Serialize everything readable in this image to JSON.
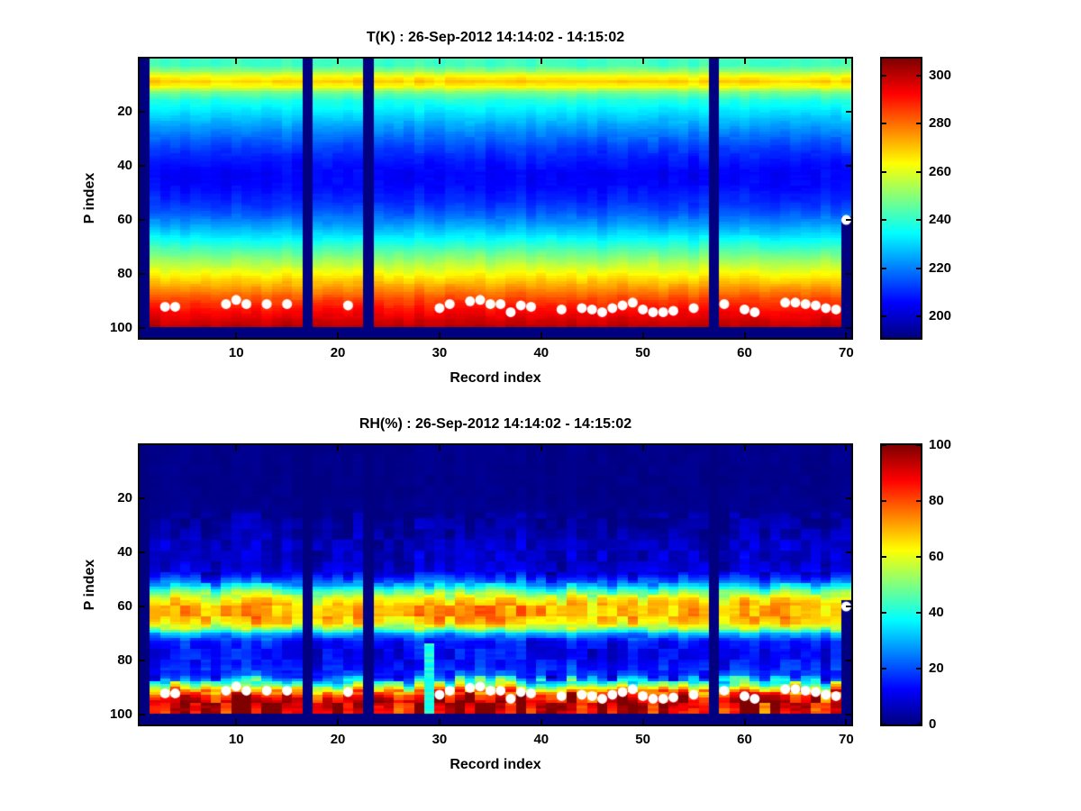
{
  "figure": {
    "background": "#ffffff",
    "marker_color": "#ffffff",
    "missing_data_color_note": "minimum of jet colormap (dark navy)"
  },
  "chart_data": [
    {
      "id": "temperature",
      "type": "heatmap",
      "title": "T(K) : 26-Sep-2012 14:14:02 - 14:15:02",
      "xlabel": "Record index",
      "ylabel": "P index",
      "colormap": "jet",
      "x_range": [
        0.5,
        70.5
      ],
      "y_range": [
        0.5,
        103.5
      ],
      "y_axis_reversed": true,
      "n_records": 70,
      "n_levels": 99,
      "x_ticks": [
        10,
        20,
        30,
        40,
        50,
        60,
        70
      ],
      "y_ticks": [
        20,
        40,
        60,
        80,
        100
      ],
      "color_range": [
        191,
        307
      ],
      "colorbar_ticks": [
        200,
        220,
        240,
        260,
        280,
        300
      ],
      "missing_records": [
        1,
        17,
        23,
        57
      ],
      "partial_records": [
        {
          "record": 70,
          "from_p": 59
        }
      ],
      "anomalies": [],
      "profile": {
        "p": [
          0.5,
          3,
          5,
          7,
          9,
          11,
          13,
          16,
          20,
          24,
          28,
          33,
          38,
          43,
          48,
          53,
          57,
          61,
          65,
          69,
          73,
          77,
          81,
          85,
          89,
          93,
          97,
          99
        ],
        "value": [
          241,
          242,
          250,
          262,
          269,
          262,
          248,
          238,
          232,
          226,
          220,
          213,
          208,
          205,
          206,
          210,
          215,
          222,
          230,
          239,
          248,
          257,
          266,
          275,
          284,
          291,
          297,
          300
        ]
      },
      "noise": {
        "seed": 42,
        "column_amp": 1.5,
        "band_amp": 1.2,
        "cell_amp": 0.8
      },
      "markers": {
        "shape": "circle",
        "color": "#ffffff",
        "radius": 5.5,
        "points": [
          [
            3,
            92
          ],
          [
            4,
            92
          ],
          [
            9,
            91
          ],
          [
            10,
            89.5
          ],
          [
            11,
            91
          ],
          [
            13,
            91
          ],
          [
            15,
            91
          ],
          [
            21,
            91.5
          ],
          [
            30,
            92.5
          ],
          [
            31,
            91
          ],
          [
            33,
            90
          ],
          [
            34,
            89.5
          ],
          [
            35,
            91
          ],
          [
            36,
            91
          ],
          [
            37,
            94
          ],
          [
            38,
            91.5
          ],
          [
            39,
            92
          ],
          [
            42,
            93
          ],
          [
            44,
            92.5
          ],
          [
            45,
            93
          ],
          [
            46,
            94
          ],
          [
            47,
            92.5
          ],
          [
            48,
            91.5
          ],
          [
            49,
            90.5
          ],
          [
            50,
            93
          ],
          [
            51,
            94
          ],
          [
            52,
            94
          ],
          [
            53,
            93.5
          ],
          [
            55,
            92.5
          ],
          [
            58,
            91
          ],
          [
            60,
            93
          ],
          [
            61,
            94
          ],
          [
            64,
            90.5
          ],
          [
            65,
            90.5
          ],
          [
            66,
            91
          ],
          [
            67,
            91.5
          ],
          [
            68,
            92.5
          ],
          [
            69,
            93
          ],
          [
            70,
            60
          ]
        ]
      }
    },
    {
      "id": "relative-humidity",
      "type": "heatmap",
      "title": "RH(%) : 26-Sep-2012 14:14:02 - 14:15:02",
      "xlabel": "Record index",
      "ylabel": "P index",
      "colormap": "jet",
      "x_range": [
        0.5,
        70.5
      ],
      "y_range": [
        0.5,
        103.5
      ],
      "y_axis_reversed": true,
      "n_records": 70,
      "n_levels": 99,
      "x_ticks": [
        10,
        20,
        30,
        40,
        50,
        60,
        70
      ],
      "y_ticks": [
        20,
        40,
        60,
        80,
        100
      ],
      "color_range": [
        0,
        100
      ],
      "colorbar_ticks": [
        0,
        20,
        40,
        60,
        80,
        100
      ],
      "missing_records": [
        1,
        17,
        23,
        57
      ],
      "partial_records": [
        {
          "record": 70,
          "from_p": 58
        }
      ],
      "anomalies": [
        {
          "record": 29,
          "from_p": 74,
          "value": 40
        }
      ],
      "profile": {
        "p": [
          0.5,
          20,
          28,
          32,
          36,
          40,
          44,
          48,
          51,
          54,
          57,
          60,
          63,
          66,
          68,
          70,
          73,
          77,
          81,
          85,
          87,
          89,
          91,
          93,
          95,
          97,
          99
        ],
        "value": [
          1,
          1,
          2,
          4,
          6,
          7,
          7,
          10,
          22,
          45,
          62,
          70,
          71,
          66,
          52,
          28,
          14,
          12,
          13,
          18,
          30,
          50,
          72,
          88,
          95,
          92,
          90
        ]
      },
      "noise": {
        "seed": 77,
        "column_amp": 1.0,
        "band_amp": 1.0,
        "cell_amp": 0.5
      },
      "markers": {
        "shape": "circle",
        "color": "#ffffff",
        "radius": 5.5,
        "points": [
          [
            3,
            92
          ],
          [
            4,
            92
          ],
          [
            9,
            91
          ],
          [
            10,
            89.5
          ],
          [
            11,
            91
          ],
          [
            13,
            91
          ],
          [
            15,
            91
          ],
          [
            21,
            91.5
          ],
          [
            30,
            92.5
          ],
          [
            31,
            91
          ],
          [
            33,
            90
          ],
          [
            34,
            89.5
          ],
          [
            35,
            91
          ],
          [
            36,
            91
          ],
          [
            37,
            94
          ],
          [
            38,
            91.5
          ],
          [
            39,
            92
          ],
          [
            42,
            93
          ],
          [
            44,
            92.5
          ],
          [
            45,
            93
          ],
          [
            46,
            94
          ],
          [
            47,
            92.5
          ],
          [
            48,
            91.5
          ],
          [
            49,
            90.5
          ],
          [
            50,
            93
          ],
          [
            51,
            94
          ],
          [
            52,
            94
          ],
          [
            53,
            93.5
          ],
          [
            55,
            92.5
          ],
          [
            58,
            91
          ],
          [
            60,
            93
          ],
          [
            61,
            94
          ],
          [
            64,
            90.5
          ],
          [
            65,
            90.5
          ],
          [
            66,
            91
          ],
          [
            67,
            91.5
          ],
          [
            68,
            92.5
          ],
          [
            69,
            93
          ],
          [
            70,
            60
          ]
        ]
      }
    }
  ]
}
